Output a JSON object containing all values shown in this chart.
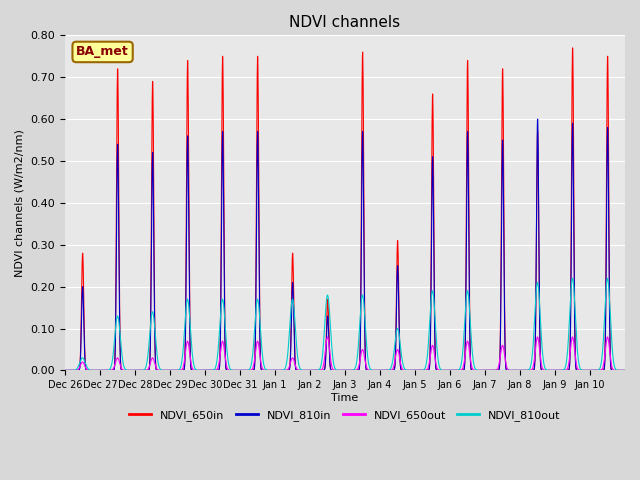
{
  "title": "NDVI channels",
  "xlabel": "Time",
  "ylabel": "NDVI channels (W/m2/nm)",
  "ylim": [
    0.0,
    0.8
  ],
  "plot_bg_color": "#e8e8e8",
  "fig_bg_color": "#d8d8d8",
  "legend_labels": [
    "NDVI_650in",
    "NDVI_810in",
    "NDVI_650out",
    "NDVI_810out"
  ],
  "legend_colors": [
    "#ff0000",
    "#0000cc",
    "#ff00ff",
    "#00cccc"
  ],
  "annotation_text": "BA_met",
  "annotation_facecolor": "#ffff99",
  "annotation_edgecolor": "#996600",
  "annotation_textcolor": "#880000",
  "tick_labels": [
    "Dec 26",
    "Dec 27",
    "Dec 28",
    "Dec 29",
    "Dec 30",
    "Dec 31",
    "Jan 1",
    "Jan 2",
    "Jan 3",
    "Jan 4",
    "Jan 5",
    "Jan 6",
    "Jan 7",
    "Jan 8",
    "Jan 9",
    "Jan 10"
  ],
  "day_peaks_650in": [
    0.28,
    0.72,
    0.69,
    0.74,
    0.75,
    0.75,
    0.28,
    0.17,
    0.76,
    0.31,
    0.66,
    0.74,
    0.72,
    0.57,
    0.77,
    0.75
  ],
  "day_peaks_810in": [
    0.2,
    0.54,
    0.52,
    0.56,
    0.57,
    0.57,
    0.21,
    0.13,
    0.57,
    0.25,
    0.51,
    0.57,
    0.55,
    0.6,
    0.59,
    0.58
  ],
  "day_peaks_650out": [
    0.02,
    0.03,
    0.03,
    0.07,
    0.07,
    0.07,
    0.03,
    0.08,
    0.05,
    0.05,
    0.06,
    0.07,
    0.06,
    0.08,
    0.08,
    0.08
  ],
  "day_peaks_810out": [
    0.03,
    0.13,
    0.14,
    0.17,
    0.17,
    0.17,
    0.17,
    0.18,
    0.18,
    0.1,
    0.19,
    0.19,
    0.0,
    0.21,
    0.22,
    0.22
  ],
  "samples_per_day": 200,
  "sigma": 0.04
}
